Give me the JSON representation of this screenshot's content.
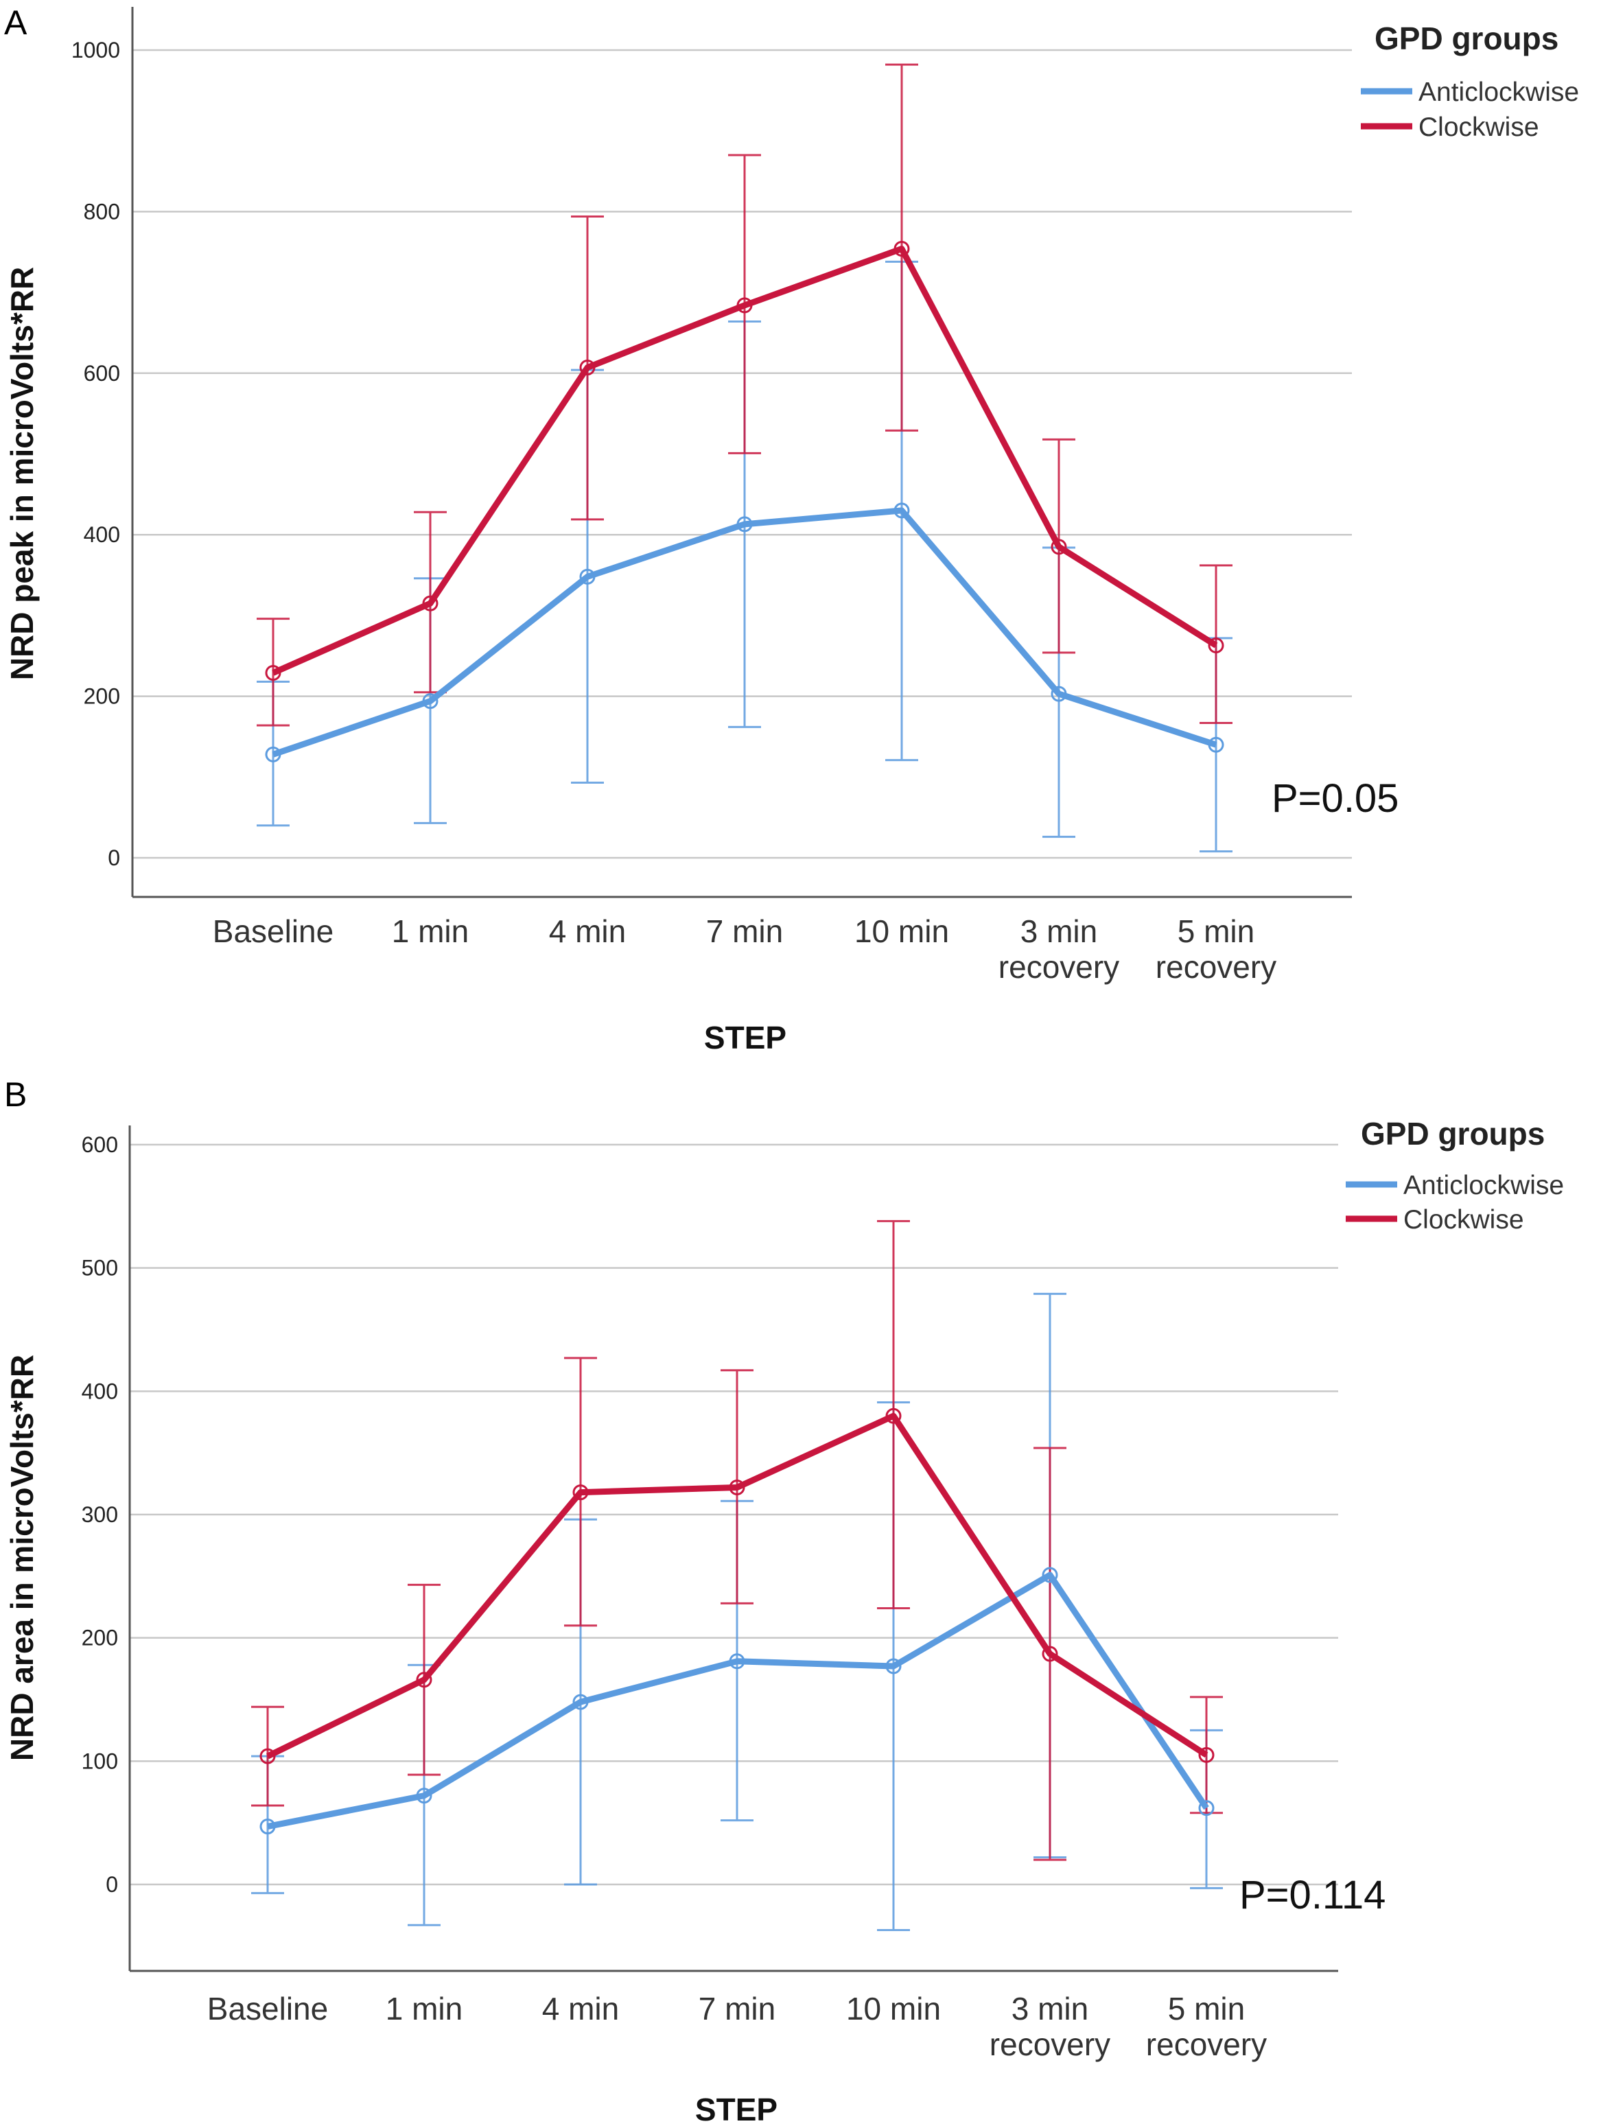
{
  "colors": {
    "Anticlockwise": "#5b9bdf",
    "Clockwise": "#c8163e",
    "grid": "#c8c8c8",
    "axis": "#555555"
  },
  "chart_data": [
    {
      "panel": "A",
      "type": "line",
      "categories": [
        "Baseline",
        "1 min",
        "4 min",
        "7 min",
        "10 min",
        "3 min recovery",
        "5 min recovery"
      ],
      "ylabel": "NRD peak in microVolts*RR",
      "xlabel": "STEP",
      "ylim": [
        0,
        1000
      ],
      "yticks": [
        0,
        200,
        400,
        600,
        800,
        1000
      ],
      "legend": {
        "title": "GPD groups",
        "placement": "top-right"
      },
      "annotation": "P=0.05",
      "grid": true,
      "series": [
        {
          "name": "Anticlockwise",
          "values": [
            128,
            194,
            348,
            413,
            430,
            203,
            140
          ],
          "err_low": [
            40,
            43,
            93,
            162,
            121,
            26,
            8
          ],
          "err_high": [
            218,
            346,
            604,
            664,
            738,
            384,
            272
          ]
        },
        {
          "name": "Clockwise",
          "values": [
            229,
            315,
            607,
            684,
            754,
            385,
            263
          ],
          "err_low": [
            164,
            205,
            419,
            501,
            529,
            254,
            167
          ],
          "err_high": [
            296,
            428,
            794,
            870,
            982,
            518,
            362
          ]
        }
      ]
    },
    {
      "panel": "B",
      "type": "line",
      "categories": [
        "Baseline",
        "1 min",
        "4 min",
        "7 min",
        "10 min",
        "3 min recovery",
        "5 min recovery"
      ],
      "ylabel": "NRD area in microVolts*RR",
      "xlabel": "STEP",
      "ylim": [
        -60,
        630
      ],
      "yticks": [
        0,
        100,
        200,
        300,
        400,
        500,
        600
      ],
      "legend": {
        "title": "GPD groups",
        "placement": "top-right"
      },
      "annotation": "P=0.114",
      "grid": true,
      "series": [
        {
          "name": "Anticlockwise",
          "values": [
            47,
            72,
            148,
            181,
            177,
            251,
            62
          ],
          "err_low": [
            -7,
            -33,
            0,
            52,
            -37,
            22,
            -3
          ],
          "err_high": [
            104,
            178,
            296,
            311,
            391,
            479,
            125
          ]
        },
        {
          "name": "Clockwise",
          "values": [
            104,
            166,
            318,
            322,
            380,
            187,
            105
          ],
          "err_low": [
            64,
            89,
            210,
            228,
            224,
            20,
            58
          ],
          "err_high": [
            144,
            243,
            427,
            417,
            538,
            354,
            152
          ]
        }
      ]
    }
  ]
}
